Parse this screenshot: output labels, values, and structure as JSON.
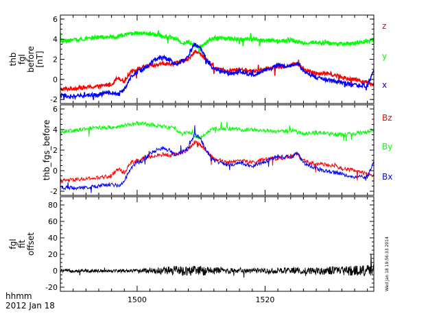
{
  "chart_data": [
    {
      "type": "line",
      "ylabel": [
        "thb",
        "fgl",
        "before",
        "[nT]"
      ],
      "ylim": [
        -2.4,
        6.4
      ],
      "yticks": [
        -2,
        0,
        2,
        4,
        6
      ],
      "x_range_minutes": [
        1488,
        1537
      ],
      "series": [
        {
          "name": "z",
          "color": "#ff0000",
          "x": [
            1488,
            1490,
            1492,
            1494,
            1496,
            1497,
            1498,
            1499,
            1500,
            1501,
            1502,
            1503,
            1504,
            1505,
            1506,
            1507,
            1508,
            1509,
            1510,
            1511,
            1512,
            1513,
            1514,
            1515,
            1516,
            1518,
            1520,
            1522,
            1524,
            1525,
            1526,
            1528,
            1530,
            1532,
            1534,
            1536,
            1537
          ],
          "y": [
            -1.0,
            -0.9,
            -0.8,
            -0.7,
            -0.5,
            0.2,
            -0.2,
            0.8,
            1.0,
            1.2,
            1.3,
            1.4,
            1.6,
            1.5,
            1.6,
            1.8,
            2.0,
            2.8,
            2.5,
            1.8,
            1.2,
            1.0,
            0.8,
            0.9,
            1.0,
            0.8,
            1.1,
            1.2,
            1.4,
            1.6,
            1.0,
            0.6,
            0.6,
            0.2,
            0.0,
            -0.3,
            -0.5
          ]
        },
        {
          "name": "y",
          "color": "#00ff00",
          "x": [
            1488,
            1490,
            1492,
            1494,
            1496,
            1498,
            1500,
            1502,
            1504,
            1506,
            1507,
            1508,
            1509,
            1510,
            1511,
            1512,
            1514,
            1516,
            1518,
            1520,
            1522,
            1524,
            1526,
            1528,
            1530,
            1532,
            1534,
            1536,
            1537
          ],
          "y": [
            3.8,
            3.9,
            4.1,
            4.2,
            4.2,
            4.4,
            4.6,
            4.5,
            4.3,
            4.1,
            3.6,
            3.8,
            3.4,
            3.2,
            3.8,
            4.1,
            4.1,
            4.0,
            4.0,
            3.9,
            3.8,
            3.9,
            3.6,
            3.7,
            3.6,
            3.5,
            3.6,
            3.8,
            3.9
          ]
        },
        {
          "name": "x",
          "color": "#0000ff",
          "x": [
            1488,
            1490,
            1492,
            1494,
            1496,
            1497,
            1498,
            1499,
            1500,
            1501,
            1502,
            1503,
            1504,
            1505,
            1506,
            1507,
            1508,
            1509,
            1510,
            1511,
            1512,
            1513,
            1514,
            1515,
            1516,
            1518,
            1520,
            1522,
            1524,
            1525,
            1526,
            1528,
            1530,
            1532,
            1534,
            1536,
            1537
          ],
          "y": [
            -1.6,
            -1.7,
            -1.6,
            -1.5,
            -1.3,
            -1.5,
            -1.0,
            0.2,
            0.8,
            1.0,
            1.6,
            2.0,
            2.2,
            2.0,
            1.5,
            1.8,
            2.2,
            3.6,
            3.0,
            1.8,
            1.0,
            0.8,
            0.6,
            0.6,
            0.8,
            0.4,
            0.9,
            1.4,
            1.3,
            1.7,
            0.8,
            0.2,
            -0.1,
            -0.3,
            -0.6,
            -0.6,
            0.9
          ]
        }
      ],
      "legend": [
        "z",
        "y",
        "x"
      ]
    },
    {
      "type": "line",
      "ylabel": [
        "thb_fgs_before"
      ],
      "ylim": [
        -2.4,
        6.4
      ],
      "yticks": [
        -2,
        0,
        2,
        4,
        6
      ],
      "x_range_minutes": [
        1488,
        1537
      ],
      "series": [
        {
          "name": "Bz",
          "color": "#ff0000",
          "x": [
            1488,
            1490,
            1492,
            1494,
            1496,
            1497,
            1498,
            1499,
            1500,
            1501,
            1502,
            1503,
            1504,
            1505,
            1506,
            1507,
            1508,
            1509,
            1510,
            1511,
            1512,
            1513,
            1514,
            1515,
            1516,
            1518,
            1520,
            1522,
            1524,
            1525,
            1526,
            1528,
            1530,
            1532,
            1534,
            1536,
            1537
          ],
          "y": [
            -1.0,
            -0.9,
            -0.8,
            -0.7,
            -0.5,
            0.2,
            -0.2,
            0.8,
            1.0,
            1.2,
            1.3,
            1.4,
            1.6,
            1.5,
            1.6,
            1.8,
            2.0,
            2.8,
            2.5,
            1.8,
            1.2,
            1.0,
            0.8,
            0.9,
            1.0,
            0.8,
            1.1,
            1.2,
            1.4,
            1.6,
            1.0,
            0.6,
            0.6,
            0.2,
            0.0,
            -0.3,
            -0.5
          ]
        },
        {
          "name": "By",
          "color": "#00ff00",
          "x": [
            1488,
            1490,
            1492,
            1494,
            1496,
            1498,
            1500,
            1502,
            1504,
            1506,
            1507,
            1508,
            1509,
            1510,
            1511,
            1512,
            1514,
            1516,
            1518,
            1520,
            1522,
            1524,
            1526,
            1528,
            1530,
            1532,
            1534,
            1536,
            1537
          ],
          "y": [
            3.8,
            3.9,
            4.1,
            4.2,
            4.2,
            4.4,
            4.6,
            4.5,
            4.3,
            4.1,
            3.6,
            3.8,
            3.4,
            3.2,
            3.8,
            4.1,
            4.1,
            4.0,
            4.0,
            3.9,
            3.8,
            3.9,
            3.6,
            3.7,
            3.6,
            3.5,
            3.6,
            3.8,
            3.9
          ]
        },
        {
          "name": "Bx",
          "color": "#0000ff",
          "x": [
            1488,
            1490,
            1492,
            1494,
            1496,
            1497,
            1498,
            1499,
            1500,
            1501,
            1502,
            1503,
            1504,
            1505,
            1506,
            1507,
            1508,
            1509,
            1510,
            1511,
            1512,
            1513,
            1514,
            1515,
            1516,
            1518,
            1520,
            1522,
            1524,
            1525,
            1526,
            1528,
            1530,
            1532,
            1534,
            1536,
            1537
          ],
          "y": [
            -1.6,
            -1.7,
            -1.6,
            -1.5,
            -1.3,
            -1.5,
            -1.0,
            0.2,
            0.8,
            1.0,
            1.6,
            2.0,
            2.2,
            2.0,
            1.5,
            1.8,
            2.2,
            3.6,
            3.0,
            1.8,
            1.0,
            0.8,
            0.6,
            0.6,
            0.8,
            0.4,
            0.9,
            1.4,
            1.3,
            1.7,
            0.8,
            0.2,
            -0.1,
            -0.3,
            -0.6,
            -0.6,
            0.9
          ]
        }
      ],
      "legend": [
        "Bz",
        "By",
        "Bx"
      ]
    },
    {
      "type": "line",
      "ylabel": [
        "fgl",
        "fit",
        "offset"
      ],
      "ylim": [
        -25,
        90
      ],
      "yticks": [
        -20,
        0,
        20,
        40,
        60,
        80
      ],
      "x_range_minutes": [
        1488,
        1537
      ],
      "series": [
        {
          "name": "offset",
          "color": "#000000",
          "x": [
            1488,
            1495,
            1500,
            1503,
            1506,
            1508,
            1510,
            1515,
            1520,
            1525,
            1530,
            1534,
            1537
          ],
          "y": [
            0,
            0,
            0,
            0,
            0,
            0,
            0,
            0,
            0,
            0,
            0,
            0,
            0
          ],
          "noise_amplitude": [
            2,
            2,
            2,
            4,
            6,
            6,
            6,
            3,
            3,
            4,
            5,
            6,
            8
          ]
        }
      ]
    }
  ],
  "xaxis": {
    "ticks": [
      {
        "minutes": 1500,
        "label": "1500"
      },
      {
        "minutes": 1520,
        "label": "1520"
      }
    ],
    "title_line1": "hhmm",
    "title_line2": "2012 Jan 18"
  },
  "timestamp": "Wed Jan 18 19:56:33 2014"
}
